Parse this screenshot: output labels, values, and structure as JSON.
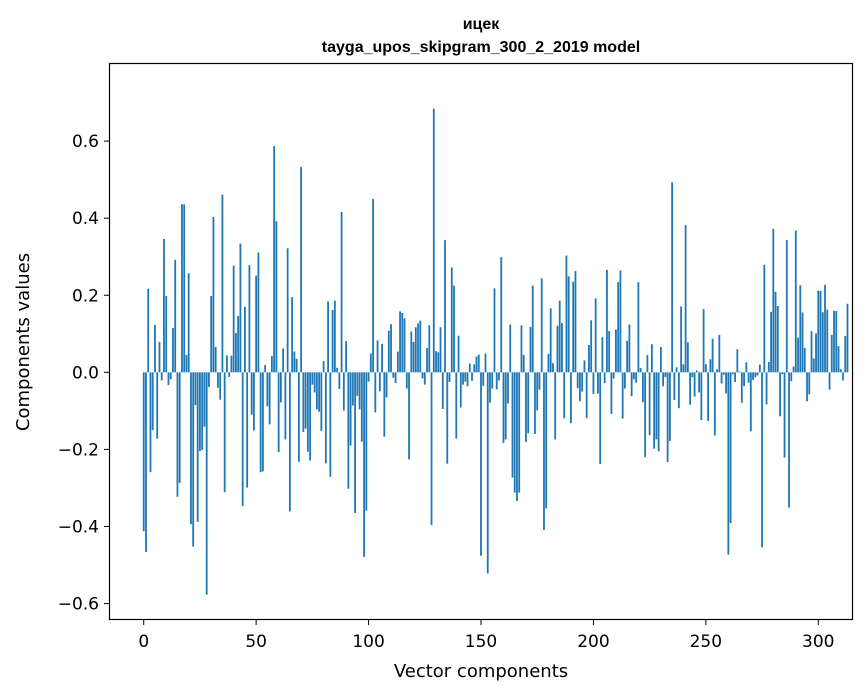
{
  "chart_data": {
    "type": "bar",
    "title": "ицек",
    "subtitle": "tayga_upos_skipgram_300_2_2019 model",
    "xlabel": "Vector components",
    "ylabel": "Components values",
    "xlim": [
      -15,
      315
    ],
    "ylim": [
      -0.64,
      0.8
    ],
    "xticks": [
      0,
      50,
      100,
      150,
      200,
      250,
      300
    ],
    "yticks": [
      -0.6,
      -0.4,
      -0.2,
      0.0,
      0.2,
      0.4,
      0.6
    ],
    "bar_color": "#1f77b4",
    "values": [
      -0.412,
      -0.466,
      0.217,
      -0.259,
      -0.15,
      0.123,
      -0.172,
      0.079,
      -0.021,
      0.346,
      0.198,
      -0.033,
      -0.018,
      0.115,
      0.292,
      -0.323,
      -0.287,
      0.436,
      0.436,
      0.045,
      0.257,
      -0.394,
      -0.452,
      -0.085,
      -0.388,
      -0.204,
      -0.201,
      -0.141,
      -0.577,
      -0.038,
      0.198,
      0.403,
      0.066,
      -0.04,
      -0.071,
      0.461,
      -0.311,
      0.044,
      -0.012,
      0.043,
      0.277,
      0.102,
      0.146,
      0.334,
      -0.347,
      0.17,
      -0.299,
      0.278,
      -0.11,
      -0.151,
      0.251,
      0.311,
      -0.259,
      -0.257,
      0.019,
      -0.088,
      -0.135,
      0.042,
      0.587,
      0.392,
      -0.207,
      -0.078,
      0.062,
      -0.174,
      0.322,
      -0.361,
      0.195,
      0.054,
      0.035,
      -0.232,
      0.533,
      -0.155,
      -0.146,
      -0.206,
      -0.229,
      -0.032,
      -0.052,
      -0.096,
      -0.102,
      -0.152,
      0.029,
      -0.236,
      0.184,
      -0.271,
      0.162,
      0.186,
      0.012,
      -0.043,
      0.416,
      -0.099,
      0.081,
      -0.302,
      -0.19,
      -0.086,
      -0.365,
      -0.061,
      -0.096,
      -0.18,
      -0.479,
      -0.359,
      -0.024,
      0.049,
      0.45,
      -0.104,
      0.083,
      -0.049,
      0.074,
      -0.167,
      -0.065,
      0.108,
      0.125,
      -0.014,
      -0.028,
      0.054,
      0.158,
      0.154,
      0.14,
      -0.042,
      -0.226,
      0.106,
      0.079,
      0.117,
      0.127,
      0.134,
      -0.016,
      -0.032,
      0.063,
      0.122,
      -0.396,
      0.684,
      0.055,
      0.052,
      0.117,
      -0.095,
      0.343,
      -0.237,
      -0.025,
      0.272,
      0.225,
      -0.172,
      0.095,
      -0.091,
      -0.032,
      -0.024,
      -0.036,
      0.023,
      -0.022,
      0.021,
      0.041,
      0.046,
      -0.476,
      -0.035,
      0.049,
      -0.522,
      -0.079,
      -0.042,
      0.218,
      -0.044,
      -0.021,
      0.299,
      -0.183,
      -0.174,
      -0.081,
      0.124,
      -0.273,
      -0.312,
      -0.334,
      -0.312,
      0.122,
      0.045,
      -0.181,
      -0.158,
      0.118,
      0.225,
      -0.16,
      -0.099,
      -0.045,
      0.244,
      -0.409,
      -0.353,
      0.048,
      0.166,
      0.024,
      -0.174,
      0.121,
      0.186,
      0.128,
      -0.119,
      0.303,
      0.249,
      -0.132,
      0.235,
      0.263,
      -0.041,
      -0.075,
      -0.05,
      0.031,
      -0.119,
      0.071,
      0.135,
      -0.056,
      0.192,
      -0.055,
      -0.238,
      0.091,
      -0.028,
      0.266,
      0.107,
      -0.108,
      -0.016,
      0.111,
      0.234,
      0.264,
      -0.12,
      -0.042,
      0.082,
      0.124,
      -0.062,
      -0.018,
      -0.027,
      0.234,
      0.011,
      -0.078,
      -0.22,
      0.045,
      -0.163,
      0.073,
      -0.198,
      -0.174,
      -0.205,
      0.066,
      -0.036,
      -0.012,
      -0.233,
      -0.178,
      0.493,
      -0.072,
      0.013,
      -0.093,
      0.171,
      0.021,
      0.382,
      0.078,
      -0.084,
      -0.013,
      -0.063,
      0.005,
      -0.052,
      -0.124,
      0.164,
      0.021,
      -0.126,
      0.034,
      0.087,
      -0.164,
      0.008,
      0.097,
      -0.029,
      -0.006,
      -0.055,
      -0.473,
      -0.391,
      -0.005,
      -0.025,
      0.06,
      0.002,
      -0.079,
      -0.036,
      0.026,
      -0.027,
      -0.153,
      -0.02,
      -0.013,
      -0.008,
      0.02,
      -0.454,
      0.279,
      -0.083,
      0.027,
      0.157,
      0.372,
      0.209,
      0.172,
      -0.114,
      -0.005,
      -0.221,
      0.343,
      -0.351,
      -0.023,
      0.015,
      0.368,
      0.09,
      0.226,
      0.155,
      0.063,
      -0.075,
      -0.057,
      0.107,
      0.036,
      0.101,
      0.212,
      0.211,
      0.156,
      0.227,
      0.163,
      -0.045,
      0.097,
      0.16,
      0.159,
      0.068,
      0.008,
      -0.021,
      0.094,
      0.178
    ]
  }
}
